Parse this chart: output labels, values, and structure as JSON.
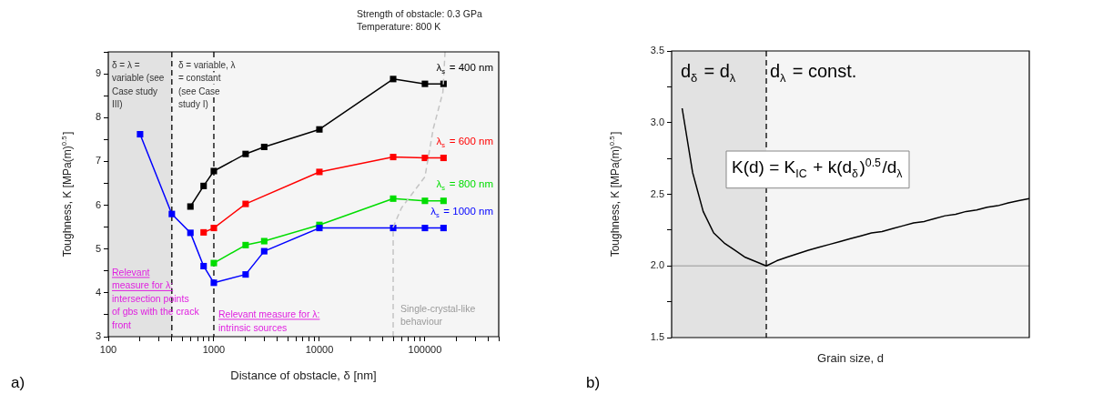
{
  "chart_data": [
    {
      "type": "line",
      "xlabel": "Distance of obstacle, δ [nm]",
      "ylabel": "Toughness, K [MPa(m)$^{0.5}$]",
      "log": "x",
      "marker": "square",
      "xlim": [
        100,
        500000
      ],
      "ylim": [
        3,
        9.5
      ],
      "xticks": [
        100,
        {
          "value": 200,
          "label": null
        },
        {
          "value": 300,
          "label": null
        },
        {
          "value": 400,
          "label": null
        },
        {
          "value": 500,
          "label": null
        },
        {
          "value": 600,
          "label": null
        },
        {
          "value": 700,
          "label": null
        },
        {
          "value": 800,
          "label": null
        },
        {
          "value": 900,
          "label": null
        },
        1000,
        {
          "value": 2000,
          "label": null
        },
        {
          "value": 3000,
          "label": null
        },
        {
          "value": 4000,
          "label": null
        },
        {
          "value": 5000,
          "label": null
        },
        {
          "value": 6000,
          "label": null
        },
        {
          "value": 7000,
          "label": null
        },
        {
          "value": 8000,
          "label": null
        },
        {
          "value": 9000,
          "label": null
        },
        10000,
        {
          "value": 20000,
          "label": null
        },
        {
          "value": 30000,
          "label": null
        },
        {
          "value": 40000,
          "label": null
        },
        {
          "value": 50000,
          "label": null
        },
        {
          "value": 60000,
          "label": null
        },
        {
          "value": 70000,
          "label": null
        },
        {
          "value": 80000,
          "label": null
        },
        {
          "value": 90000,
          "label": null
        },
        100000,
        {
          "value": 200000,
          "label": null
        },
        {
          "value": 300000,
          "label": null
        },
        {
          "value": 400000,
          "label": null
        },
        {
          "value": 500000,
          "label": null
        }
      ],
      "yticks": [
        3,
        {
          "value": 3.5,
          "label": null
        },
        4,
        {
          "value": 4.5,
          "label": null
        },
        5,
        {
          "value": 5.5,
          "label": null
        },
        6,
        {
          "value": 6.5,
          "label": null
        },
        7,
        {
          "value": 7.5,
          "label": null
        },
        8,
        {
          "value": 8.5,
          "label": null
        },
        9,
        {
          "value": 9.5,
          "label": null
        }
      ],
      "bands": [
        {
          "axis": "x",
          "from": 100,
          "to": 400,
          "color": "#e2e2e2"
        }
      ],
      "ref_lines": [
        {
          "axis": "x",
          "value": 400,
          "color": "#000000",
          "line_style": "dashed"
        },
        {
          "axis": "x",
          "value": 1000,
          "color": "#000000",
          "line_style": "dashed"
        }
      ],
      "series": [
        {
          "name": "λ$_{s}$ = 400 nm",
          "color": "#000000",
          "x": [
            600,
            800,
            1000,
            2000,
            3000,
            10000,
            50000,
            100000,
            150000
          ],
          "values": [
            5.97,
            6.44,
            6.78,
            7.17,
            7.33,
            7.73,
            8.88,
            8.77,
            8.77
          ]
        },
        {
          "name": "λ$_{s}$ = 600 nm",
          "color": "#ff0000",
          "x": [
            800,
            1000,
            2000,
            10000,
            50000,
            100000,
            150000
          ],
          "values": [
            5.38,
            5.48,
            6.03,
            6.76,
            7.1,
            7.08,
            7.08
          ]
        },
        {
          "name": "λ$_{s}$ = 800 nm",
          "color": "#00dd00",
          "x": [
            1000,
            2000,
            3000,
            10000,
            50000,
            100000,
            150000
          ],
          "values": [
            4.68,
            5.09,
            5.18,
            5.55,
            6.15,
            6.1,
            6.1
          ]
        },
        {
          "name": "λ$_{s}$ = 1000 nm",
          "color": "#0000ff",
          "x": [
            200,
            400,
            600,
            800,
            1000,
            2000,
            3000,
            10000,
            50000,
            100000,
            150000
          ],
          "values": [
            7.62,
            5.8,
            5.37,
            4.61,
            4.23,
            4.42,
            4.95,
            5.48,
            5.48,
            5.48,
            5.48
          ]
        },
        {
          "type": "line",
          "color": "#c4c4c4",
          "marker": "none",
          "line_style": "dashed",
          "x": [
            50000,
            50000,
            60000,
            100000,
            120000,
            148000,
            155000
          ],
          "values": [
            3,
            5.5,
            5.94,
            6.65,
            7.75,
            8.58,
            9.5
          ]
        }
      ],
      "annotations": [
        "Strength of obstacle: 0.3 GPa",
        "Temperature: 800 K",
        "δ = λ = variable (see Case study III)",
        "δ = variable, λ = constant (see Case study I)",
        "Relevant measure for λ:",
        "intersection points of gbs with the crack front",
        "Relevant measure for λ:",
        "intrinsic sources",
        "Single-crystal-like behaviour",
        "a)"
      ]
    },
    {
      "type": "line",
      "xlabel": "Grain size, d",
      "ylabel": "Toughness, K [MPa(m)$^{0.5}$]",
      "marker": "none",
      "ylim": [
        1.5,
        3.5
      ],
      "yticks": [
        1.5,
        {
          "value": 1.75,
          "label": null
        },
        {
          "value": 2,
          "label": "2.0"
        },
        {
          "value": 2.25,
          "label": null
        },
        2.5,
        {
          "value": 2.75,
          "label": null
        },
        {
          "value": 3,
          "label": "3.0"
        },
        {
          "value": 3.25,
          "label": null
        },
        3.5
      ],
      "categories": [
        null,
        null,
        null,
        null,
        null,
        null,
        null,
        null,
        null,
        null,
        null,
        null,
        null,
        null,
        null,
        null,
        null,
        null,
        null,
        null,
        null,
        null,
        null,
        null,
        null,
        null,
        null,
        null,
        null,
        null,
        null,
        null,
        null,
        null,
        null
      ],
      "ref_lines": [
        {
          "axis": "y",
          "value": 2,
          "color": "#b0b0b0",
          "line_style": "solid"
        }
      ],
      "series": [
        {
          "color": "#000000",
          "values": [
            null,
            3.1,
            2.65,
            2.38,
            2.23,
            2.16,
            2.11,
            2.06,
            2.03,
            2.0,
            2.036,
            2.062,
            2.086,
            2.109,
            2.13,
            2.15,
            2.17,
            2.19,
            2.21,
            2.23,
            2.24,
            2.26,
            2.28,
            2.3,
            2.31,
            2.33,
            2.35,
            2.36,
            2.38,
            2.39,
            2.41,
            2.42,
            2.44,
            2.455,
            2.47
          ]
        }
      ],
      "annotations": [
        "d$_{δ}$ = d$_{λ}$",
        "d$_{λ}$ = const.",
        "K(d) = K$_{IC}$ + k(d$_{δ}$)$^{0.5}$/d$_{λ}$",
        "b)"
      ]
    }
  ]
}
